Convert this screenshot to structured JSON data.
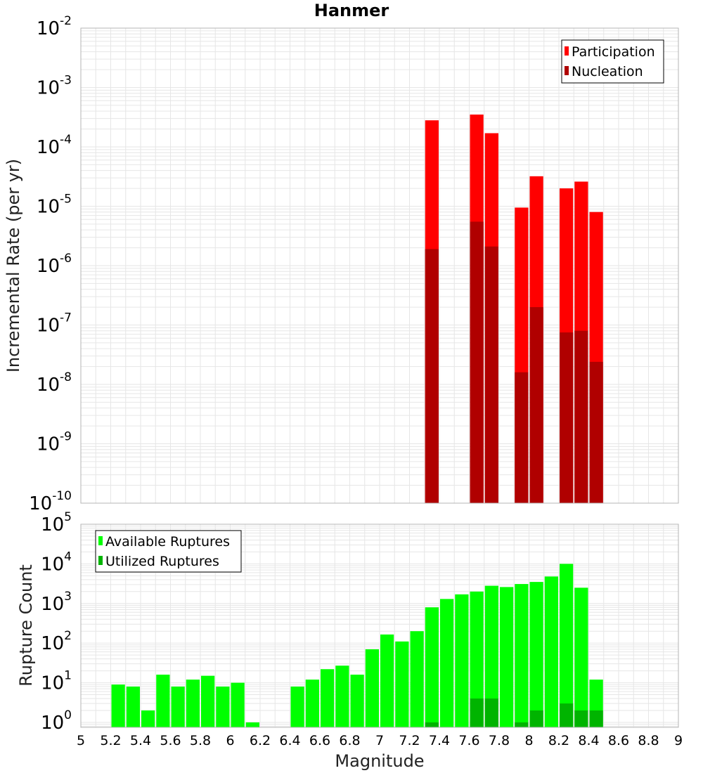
{
  "title": "Hanmer",
  "colors": {
    "participation": "#ff0000",
    "nucleation": "#b00000",
    "available": "#00ff00",
    "utilized": "#00b400",
    "grid": "#e6e6e6",
    "frame": "#b4b4b4"
  },
  "chart_data": [
    {
      "type": "bar",
      "name": "rate-panel",
      "yscale": "log",
      "ylabel": "Incremental Rate (per yr)",
      "xlabel": "",
      "xlim": [
        5,
        9
      ],
      "ylim": [
        1e-10,
        0.01
      ],
      "y_ticks": [
        {
          "base": "10",
          "exp": "-10"
        },
        {
          "base": "10",
          "exp": "-9"
        },
        {
          "base": "10",
          "exp": "-8"
        },
        {
          "base": "10",
          "exp": "-7"
        },
        {
          "base": "10",
          "exp": "-6"
        },
        {
          "base": "10",
          "exp": "-5"
        },
        {
          "base": "10",
          "exp": "-4"
        },
        {
          "base": "10",
          "exp": "-3"
        },
        {
          "base": "10",
          "exp": "-2"
        }
      ],
      "legend_position": "top-right",
      "series": [
        {
          "name": "Participation",
          "x": [
            7.35,
            7.65,
            7.75,
            7.95,
            8.05,
            8.25,
            8.35,
            8.45
          ],
          "values": [
            0.00028,
            0.00035,
            0.00017,
            9.5e-06,
            3.2e-05,
            2e-05,
            2.6e-05,
            8e-06
          ]
        },
        {
          "name": "Nucleation",
          "x": [
            7.35,
            7.65,
            7.75,
            7.95,
            8.05,
            8.25,
            8.35,
            8.45
          ],
          "values": [
            1.9e-06,
            5.5e-06,
            2.1e-06,
            1.6e-08,
            2e-07,
            7.5e-08,
            8e-08,
            2.4e-08
          ]
        }
      ],
      "bar_width": 0.1
    },
    {
      "type": "bar",
      "name": "count-panel",
      "yscale": "log",
      "ylabel": "Rupture Count",
      "xlabel": "Magnitude",
      "xlim": [
        5,
        9
      ],
      "ylim": [
        0.75,
        100000.0
      ],
      "x_ticks": [
        "5",
        "5.2",
        "5.4",
        "5.6",
        "5.8",
        "6",
        "6.2",
        "6.4",
        "6.6",
        "6.8",
        "7",
        "7.2",
        "7.4",
        "7.6",
        "7.8",
        "8",
        "8.2",
        "8.4",
        "8.6",
        "8.8",
        "9"
      ],
      "y_ticks": [
        {
          "base": "10",
          "exp": "0"
        },
        {
          "base": "10",
          "exp": "1"
        },
        {
          "base": "10",
          "exp": "2"
        },
        {
          "base": "10",
          "exp": "3"
        },
        {
          "base": "10",
          "exp": "4"
        },
        {
          "base": "10",
          "exp": "5"
        }
      ],
      "legend_position": "top-left",
      "series": [
        {
          "name": "Available Ruptures",
          "x": [
            5.25,
            5.35,
            5.45,
            5.55,
            5.65,
            5.75,
            5.85,
            5.95,
            6.05,
            6.15,
            6.45,
            6.55,
            6.65,
            6.75,
            6.85,
            6.95,
            7.05,
            7.15,
            7.25,
            7.35,
            7.45,
            7.55,
            7.65,
            7.75,
            7.85,
            7.95,
            8.05,
            8.15,
            8.25,
            8.35,
            8.45
          ],
          "values": [
            9,
            8,
            2,
            16,
            8,
            12,
            15,
            8,
            10,
            1,
            8,
            12,
            22,
            27,
            16,
            70,
            165,
            110,
            200,
            800,
            1300,
            1700,
            2000,
            2800,
            2600,
            3100,
            3500,
            4800,
            10000,
            2500,
            12
          ]
        },
        {
          "name": "Utilized Ruptures",
          "x": [
            7.35,
            7.65,
            7.75,
            7.95,
            8.05,
            8.25,
            8.35,
            8.45
          ],
          "values": [
            1,
            4,
            4,
            1,
            2,
            3,
            2,
            2
          ]
        }
      ],
      "bar_width": 0.1
    }
  ]
}
